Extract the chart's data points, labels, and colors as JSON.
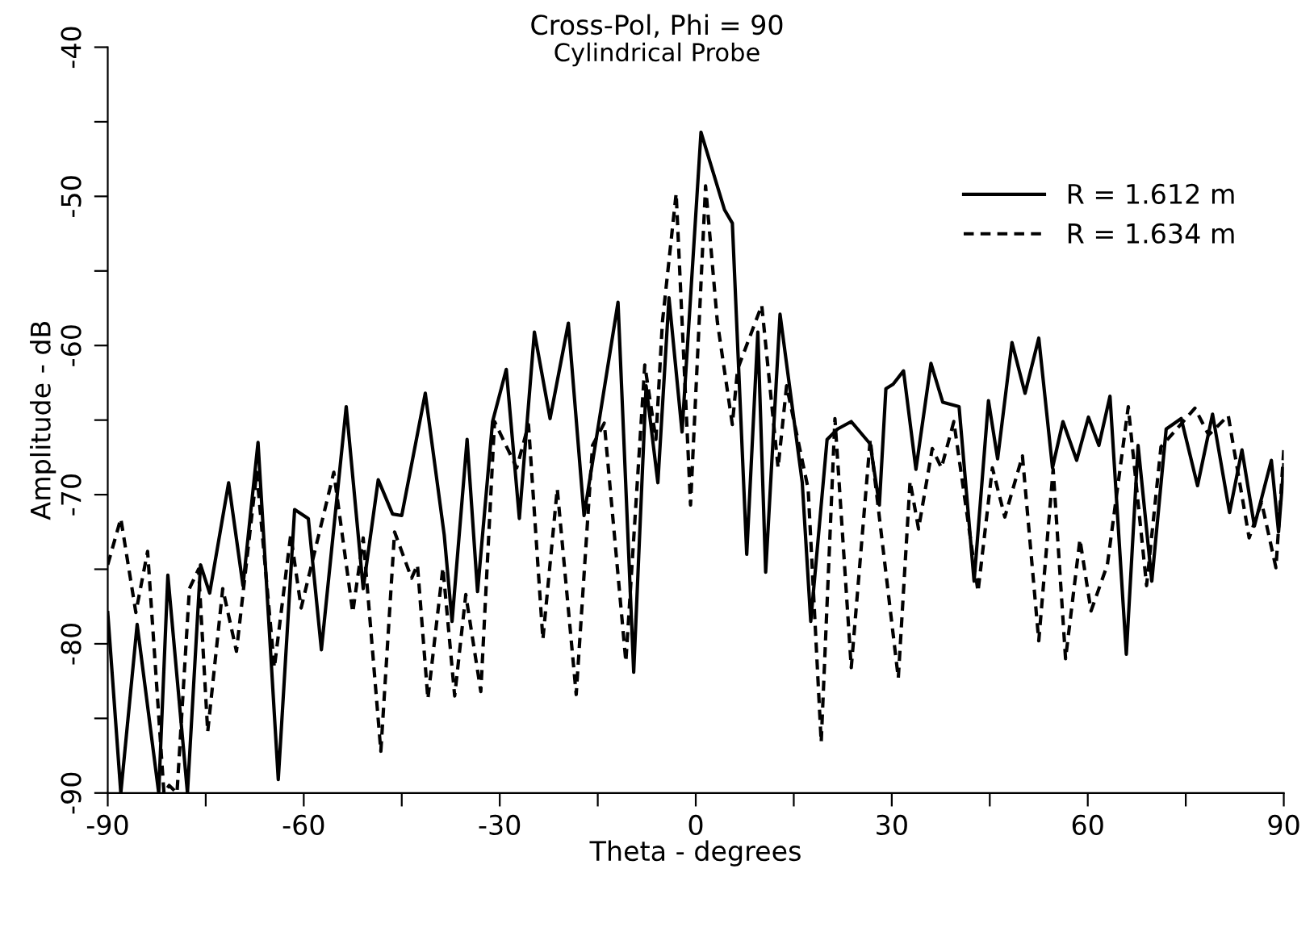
{
  "chart_data": {
    "type": "line",
    "title": "Cross-Pol, Phi = 90",
    "subtitle": "Cylindrical Probe",
    "xlabel": "Theta - degrees",
    "ylabel": "Amplitude - dB",
    "xlim": [
      -90,
      90
    ],
    "ylim": [
      -90,
      -40
    ],
    "xticks": [
      -90,
      {
        "value": -75,
        "label": null
      },
      -60,
      {
        "value": -45,
        "label": null
      },
      -30,
      {
        "value": -15,
        "label": null
      },
      0,
      {
        "value": 15,
        "label": null
      },
      30,
      {
        "value": 45,
        "label": null
      },
      60,
      {
        "value": 75,
        "label": null
      },
      90
    ],
    "yticks": [
      -90,
      {
        "value": -85,
        "label": null
      },
      -80,
      {
        "value": -75,
        "label": null
      },
      -70,
      {
        "value": -65,
        "label": null
      },
      -60,
      {
        "value": -55,
        "label": null
      },
      -50,
      {
        "value": -45,
        "label": null
      },
      -40
    ],
    "grid": false,
    "legend": "top right",
    "marker": "none",
    "series": [
      {
        "name": "R = 1.612 m",
        "color": "#000000",
        "line_style": "solid",
        "x": [
          -90,
          -88,
          -85.5,
          -82.2,
          -80.8,
          -77.8,
          -75.8,
          -74.4,
          -71.5,
          -69.3,
          -67,
          -63.9,
          -61.4,
          -59.3,
          -57.3,
          -53.5,
          -50.9,
          -48.6,
          -46.4,
          -45,
          -41.4,
          -38.5,
          -37.3,
          -35,
          -33.4,
          -31.1,
          -29,
          -27,
          -24.7,
          -22.3,
          -19.5,
          -17.1,
          -11.9,
          -9.5,
          -7.6,
          -5.8,
          -4.1,
          -2.1,
          0.8,
          4.4,
          5.6,
          7.8,
          9.5,
          10.7,
          12.9,
          16.3,
          17.6,
          20.1,
          21.7,
          23.8,
          26.7,
          28.1,
          29.1,
          30.2,
          31.8,
          33.7,
          36,
          37.8,
          40.3,
          42.6,
          44.8,
          46.2,
          48.4,
          50.4,
          52.5,
          54.6,
          56.2,
          58.3,
          60.1,
          61.7,
          63.4,
          65.9,
          67.7,
          69.8,
          72,
          74.3,
          76.8,
          79.1,
          81.7,
          83.6,
          85.5,
          88.1,
          89.2,
          90
        ],
        "values": [
          -77.9,
          -90,
          -78.7,
          -90,
          -75.4,
          -90,
          -74.7,
          -76.6,
          -69.2,
          -76.1,
          -66.5,
          -89.1,
          -71,
          -71.6,
          -80.4,
          -64.1,
          -76.3,
          -69,
          -71.3,
          -71.4,
          -63.2,
          -72.7,
          -78.5,
          -66.3,
          -76.5,
          -65.1,
          -61.6,
          -71.6,
          -59.1,
          -64.9,
          -58.5,
          -71.4,
          -57.1,
          -81.9,
          -62.7,
          -69.2,
          -56.8,
          -65.8,
          -45.7,
          -50.9,
          -51.8,
          -74,
          -59.1,
          -75.2,
          -57.9,
          -69.2,
          -78.5,
          -66.3,
          -65.6,
          -65.1,
          -66.6,
          -70.7,
          -62.9,
          -62.6,
          -61.7,
          -68.3,
          -61.2,
          -63.8,
          -64.1,
          -75.8,
          -63.7,
          -67.6,
          -59.8,
          -63.2,
          -59.5,
          -68.2,
          -65.1,
          -67.7,
          -64.8,
          -66.7,
          -63.4,
          -80.7,
          -66.7,
          -75.8,
          -65.6,
          -64.9,
          -69.4,
          -64.6,
          -71.2,
          -67,
          -72.1,
          -67.7,
          -72.5,
          -68
        ]
      },
      {
        "name": "R = 1.634 m",
        "color": "#000000",
        "line_style": "dashed",
        "x": [
          -90,
          -88,
          -85.7,
          -83.9,
          -81.4,
          -80.6,
          -79.4,
          -77.5,
          -76.1,
          -74.7,
          -72.4,
          -70.3,
          -67.2,
          -64.5,
          -62,
          -60.4,
          -55.4,
          -52.5,
          -50.9,
          -48.2,
          -46.1,
          -43.5,
          -42.6,
          -41,
          -38.7,
          -36.9,
          -35.2,
          -32.9,
          -30.8,
          -27.4,
          -25.6,
          -23.4,
          -21.2,
          -18.3,
          -15.8,
          -14,
          -10.7,
          -7.8,
          -6.1,
          -5.1,
          -3,
          -0.8,
          1.5,
          3.3,
          5.6,
          6.4,
          10.1,
          12.6,
          13.9,
          17.2,
          19.2,
          21.3,
          23.8,
          26.7,
          31,
          32.8,
          34.1,
          36.2,
          37.6,
          39.5,
          43.2,
          45.4,
          47.3,
          50,
          52.5,
          54.7,
          56.6,
          58.8,
          60.5,
          63,
          66.2,
          69,
          71.2,
          76.4,
          78.5,
          81.5,
          84.7,
          86.6,
          88.8,
          90
        ],
        "values": [
          -74.7,
          -71.6,
          -77.9,
          -73.8,
          -90,
          -89.5,
          -90,
          -76.3,
          -75,
          -85.9,
          -76.3,
          -80.5,
          -68.5,
          -81.6,
          -72.7,
          -77.6,
          -68.5,
          -77.9,
          -72.9,
          -87.2,
          -72.5,
          -75.6,
          -74.7,
          -83.7,
          -74.9,
          -83.5,
          -76.7,
          -83.2,
          -65.1,
          -68.2,
          -65.3,
          -79.7,
          -69.6,
          -83.4,
          -66.7,
          -65.2,
          -81.2,
          -61.3,
          -66.3,
          -58.4,
          -49.8,
          -70.7,
          -49.3,
          -58.4,
          -65.3,
          -61.6,
          -57.3,
          -68.2,
          -62.7,
          -69.6,
          -86.6,
          -64.9,
          -81.6,
          -66.3,
          -82.3,
          -69.1,
          -72.3,
          -66.9,
          -68.2,
          -65.1,
          -76.5,
          -68.2,
          -71.5,
          -67.4,
          -79.8,
          -68.3,
          -81,
          -73,
          -77.8,
          -74.7,
          -64.1,
          -76.1,
          -66.8,
          -64.2,
          -66,
          -64.7,
          -72.9,
          -70.5,
          -74.9,
          -67
        ]
      }
    ]
  }
}
